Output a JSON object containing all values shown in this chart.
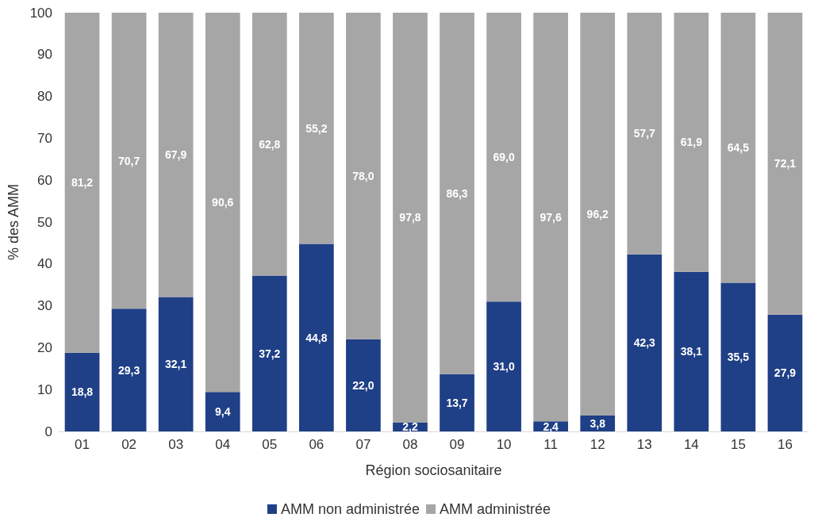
{
  "chart_data": {
    "type": "bar",
    "stacked": true,
    "xlabel": "Région sociosanitaire",
    "ylabel": "% des AMM",
    "categories": [
      "01",
      "02",
      "03",
      "04",
      "05",
      "06",
      "07",
      "08",
      "09",
      "10",
      "11",
      "12",
      "13",
      "14",
      "15",
      "16"
    ],
    "series": [
      {
        "name": "AMM non administrée",
        "color": "#1f3f86",
        "values": [
          18.8,
          29.3,
          32.1,
          9.4,
          37.2,
          44.8,
          22.0,
          2.2,
          13.7,
          31.0,
          2.4,
          3.8,
          42.3,
          38.1,
          35.5,
          27.9
        ],
        "value_labels": [
          "18,8",
          "29,3",
          "32,1",
          "9,4",
          "37,2",
          "44,8",
          "22,0",
          "2,2",
          "13,7",
          "31,0",
          "2,4",
          "3,8",
          "42,3",
          "38,1",
          "35,5",
          "27,9"
        ]
      },
      {
        "name": "AMM administrée",
        "color": "#a6a6a6",
        "values": [
          81.2,
          70.7,
          67.9,
          90.6,
          62.8,
          55.2,
          78.0,
          97.8,
          86.3,
          69.0,
          97.6,
          96.2,
          57.7,
          61.9,
          64.5,
          72.1
        ],
        "value_labels": [
          "81,2",
          "70,7",
          "67,9",
          "90,6",
          "62,8",
          "55,2",
          "78,0",
          "97,8",
          "86,3",
          "69,0",
          "97,6",
          "96,2",
          "57,7",
          "61,9",
          "64,5",
          "72,1"
        ]
      }
    ],
    "ylim": [
      0,
      100
    ],
    "yticks": [
      0,
      10,
      20,
      30,
      40,
      50,
      60,
      70,
      80,
      90,
      100
    ],
    "grid": false,
    "legend": "bottom"
  }
}
